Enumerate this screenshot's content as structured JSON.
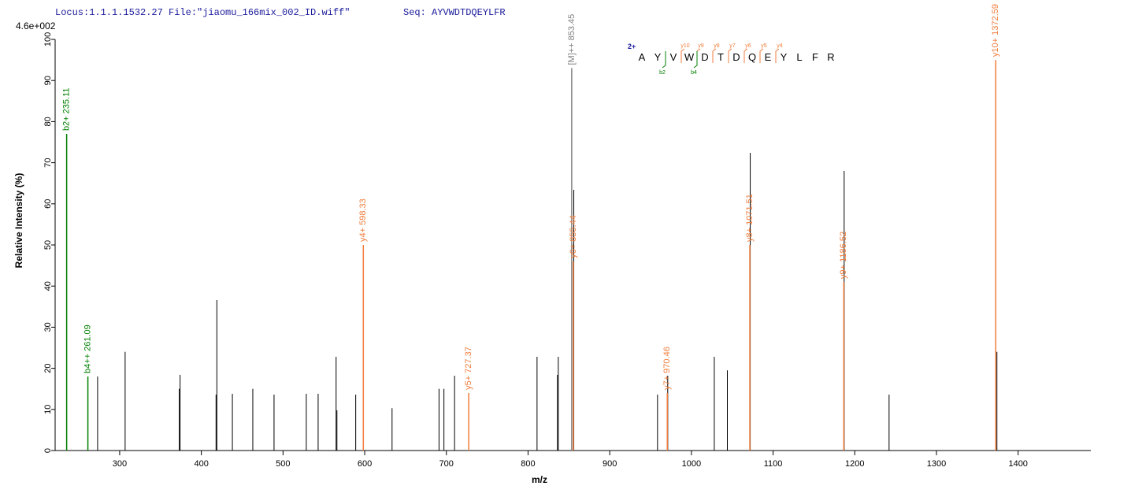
{
  "header": {
    "locus": "Locus:1.1.1.1532.27 File:\"jiaomu_166mix_002_ID.wiff\"",
    "sequence": "Seq: AYVWDTDQEYLFR"
  },
  "chart_data": {
    "type": "spectrum",
    "scale_label": "4.6e+002",
    "x_label": "m/z",
    "y_label": "Relative   Intensity (%)",
    "xlim": [
      221,
      1489
    ],
    "ylim": [
      0,
      100
    ],
    "xticks": [
      300,
      400,
      500,
      600,
      700,
      800,
      900,
      1000,
      1100,
      1200,
      1300,
      1400
    ],
    "yticks": [
      0,
      10,
      20,
      30,
      40,
      50,
      60,
      70,
      80,
      90,
      100
    ],
    "peaks": {
      "color": "#000000",
      "x": [
        273,
        306.7,
        373,
        374,
        418,
        419,
        438,
        463,
        489,
        528.5,
        543,
        565,
        566,
        589,
        633.5,
        691,
        697,
        710,
        811,
        836,
        837,
        856,
        958.5,
        971,
        1028,
        1044,
        1072,
        1187,
        1242,
        1374
      ],
      "values": [
        18,
        24,
        15,
        18.4,
        13.6,
        36.6,
        13.8,
        15,
        13.6,
        13.8,
        13.8,
        22.8,
        9.8,
        13.6,
        10.3,
        15,
        15,
        18.2,
        22.8,
        18.4,
        22.8,
        63.4,
        13.6,
        18.2,
        22.8,
        19.5,
        72.4,
        68,
        13.6,
        24
      ]
    },
    "annotated_peaks": [
      {
        "label": "b2+ 235.11",
        "x": 235.11,
        "value": 77,
        "color": "#008000"
      },
      {
        "label": "b4++ 261.09",
        "x": 261.09,
        "value": 18,
        "color": "#008000"
      },
      {
        "label": "y4+ 598.33",
        "x": 598.33,
        "value": 50,
        "color": "#f07d3c"
      },
      {
        "label": "y5+ 727.37",
        "x": 727.37,
        "value": 14,
        "color": "#f07d3c"
      },
      {
        "label": "[M]++ 853.45",
        "x": 853.45,
        "value": 93,
        "color": "#808080"
      },
      {
        "label": "y6+ 855.44",
        "x": 855.44,
        "value": 46,
        "color": "#f07d3c"
      },
      {
        "label": "y7+ 970.46",
        "x": 970.46,
        "value": 14,
        "color": "#f07d3c"
      },
      {
        "label": "y8+ 1071.51",
        "x": 1071.51,
        "value": 50,
        "color": "#f07d3c"
      },
      {
        "label": "y9+ 1186.52",
        "x": 1186.52,
        "value": 41,
        "color": "#f07d3c"
      },
      {
        "label": "y10+ 1372.59",
        "x": 1372.59,
        "value": 95,
        "color": "#f07d3c"
      }
    ],
    "fragment_map": {
      "charge": "2+",
      "residues": [
        "A",
        "Y",
        "V",
        "W",
        "D",
        "T",
        "D",
        "Q",
        "E",
        "Y",
        "L",
        "F",
        "R"
      ],
      "y_ions": [
        "y10",
        "y9",
        "y8",
        "y7",
        "y6",
        "y5",
        "y4"
      ],
      "b_ions": [
        "b2",
        "b4"
      ]
    }
  }
}
